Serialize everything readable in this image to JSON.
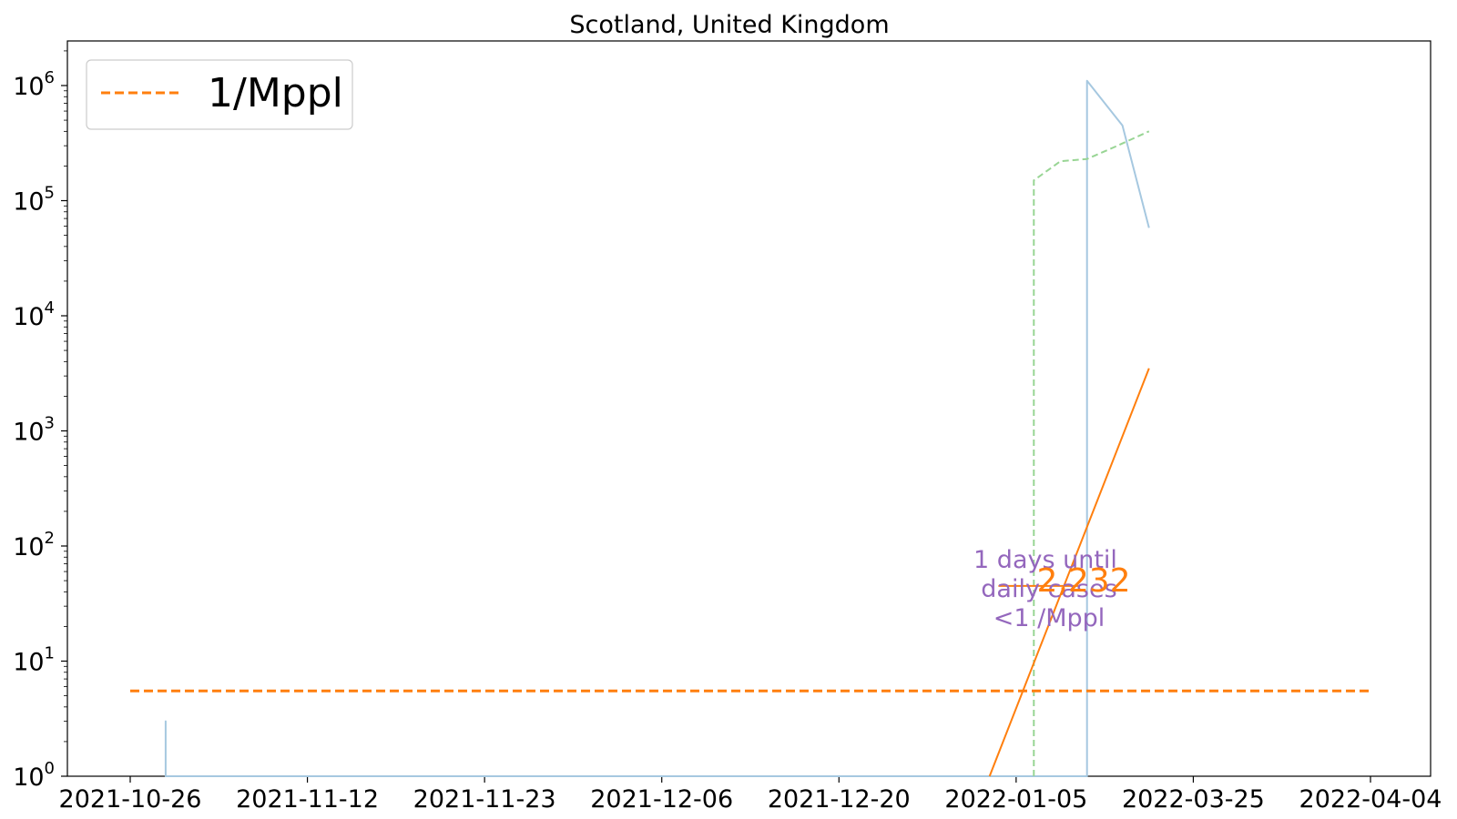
{
  "chart_data": {
    "type": "line",
    "title": "Scotland, United Kingdom",
    "xlabel": "",
    "ylabel": "",
    "y_scale": "log",
    "ylim": [
      1,
      2500000
    ],
    "x_tick_labels": [
      "2021-10-26",
      "2021-11-12",
      "2021-11-23",
      "2021-12-06",
      "2021-12-20",
      "2022-01-05",
      "2022-03-25",
      "2022-04-04"
    ],
    "y_ticks": [
      {
        "base": "10",
        "exp": "0",
        "value": 1
      },
      {
        "base": "10",
        "exp": "1",
        "value": 10
      },
      {
        "base": "10",
        "exp": "2",
        "value": 100
      },
      {
        "base": "10",
        "exp": "3",
        "value": 1000
      },
      {
        "base": "10",
        "exp": "4",
        "value": 10000
      },
      {
        "base": "10",
        "exp": "5",
        "value": 100000
      },
      {
        "base": "10",
        "exp": "6",
        "value": 1000000
      }
    ],
    "legend": {
      "position": "top-left",
      "entries": [
        {
          "label": "1/Mppl",
          "color": "#ff7f0e",
          "style": "dashed"
        }
      ]
    },
    "grid": false,
    "series": [
      {
        "color": "#a6c8e0",
        "style": "solid",
        "points": [
          [
            0.2,
            1
          ],
          [
            0.2,
            3
          ],
          [
            0.2,
            1
          ],
          [
            5.4,
            1
          ],
          [
            5.4,
            1100000
          ],
          [
            5.6,
            450000
          ],
          [
            5.75,
            58000
          ]
        ]
      },
      {
        "color": "#98d594",
        "style": "dashed",
        "points": [
          [
            5.1,
            1
          ],
          [
            5.1,
            150000
          ],
          [
            5.25,
            220000
          ],
          [
            5.4,
            230000
          ],
          [
            5.55,
            290000
          ],
          [
            5.75,
            400000
          ]
        ]
      },
      {
        "color": "#ff7f0e",
        "style": "solid",
        "points": [
          [
            4.85,
            1
          ],
          [
            5.75,
            3500
          ]
        ]
      },
      {
        "color": "#ff7f0e",
        "style": "dashed",
        "name": "1/Mppl",
        "points": [
          [
            0,
            5.5
          ],
          [
            7,
            5.5
          ]
        ]
      },
      {
        "color": "#ff7f0e",
        "style": "solid",
        "points": [
          [
            4.9,
            45
          ],
          [
            5.35,
            45
          ]
        ]
      }
    ],
    "annotations": [
      {
        "text": "1 days until",
        "color": "#9467bd"
      },
      {
        "text": "daily cases",
        "color": "#9467bd"
      },
      {
        "text": "<1 /Mppl",
        "color": "#9467bd"
      },
      {
        "text": "2,232",
        "color": "#ff7f0e"
      }
    ]
  }
}
